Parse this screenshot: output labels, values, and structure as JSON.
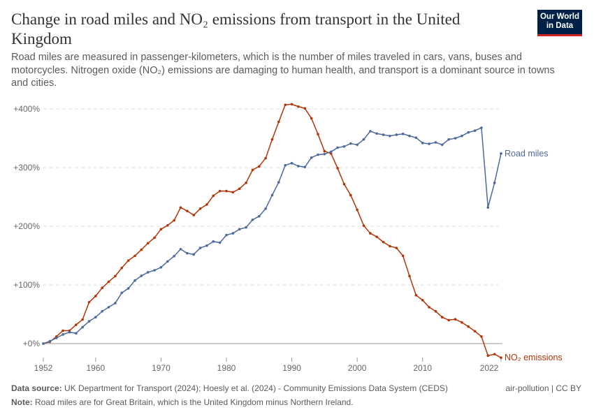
{
  "title": "Change in road miles and NO₂ emissions from transport in the United Kingdom",
  "subtitle": "Road miles are measured in passenger-kilometers, which is the number of miles traveled in cars, vans, buses and motorcycles. Nitrogen oxide (NO₂) emissions are damaging to human health, and transport is a dominant source in towns and cities.",
  "logo": "Our World in Data",
  "footer": {
    "source_label": "Data source:",
    "source": "UK Department for Transport (2024); Hoesly et al. (2024) - Community Emissions Data System (CEDS)",
    "note_label": "Note:",
    "note": "Road miles are for Great Britain, which is the United Kingdom minus Northern Ireland.",
    "license": "air-pollution | CC BY"
  },
  "chart_data": {
    "type": "line",
    "xlim": [
      1952,
      2022
    ],
    "ylim": [
      -25,
      400
    ],
    "grid": "horizontal dashed",
    "yticks": [
      0,
      100,
      200,
      300,
      400
    ],
    "ytick_labels": [
      "+0%",
      "+100%",
      "+200%",
      "+300%",
      "+400%"
    ],
    "xticks": [
      1952,
      1960,
      1970,
      1980,
      1990,
      2000,
      2010,
      2022
    ],
    "xtick_labels": [
      "1952",
      "1960",
      "1970",
      "1980",
      "1990",
      "2000",
      "2010",
      "2022"
    ],
    "legend": "inline-right",
    "series": [
      {
        "name": "Road miles",
        "color": "#4c6a9c",
        "start_year": 1952,
        "values": [
          0,
          4,
          9.5,
          15.5,
          19.4,
          17.5,
          28,
          38,
          45,
          55,
          62,
          69,
          86.5,
          94,
          107.5,
          115.5,
          121.5,
          125,
          130,
          140,
          149,
          161,
          154,
          152,
          163,
          167,
          174,
          172,
          185,
          188,
          195,
          198,
          211,
          217,
          230,
          253,
          275,
          304,
          307.5,
          302.5,
          301,
          317,
          322,
          323,
          327,
          334,
          336,
          341,
          339,
          348,
          362,
          358,
          356,
          354,
          356,
          357.5,
          354,
          351,
          342,
          340.5,
          343,
          339,
          348,
          350,
          354,
          360,
          363,
          368,
          232,
          274,
          324
        ]
      },
      {
        "name": "NO₂ emissions",
        "color": "#b13507",
        "start_year": 1952,
        "values": [
          0,
          3,
          12,
          22,
          22,
          32,
          41,
          70.5,
          81,
          95,
          105.5,
          115,
          129,
          141.5,
          149.5,
          160,
          171,
          180.5,
          195,
          201.5,
          210,
          232,
          226,
          219,
          230,
          237,
          252,
          260,
          260,
          258,
          264,
          274,
          296,
          302,
          316,
          348,
          378,
          407,
          408,
          404,
          401,
          384,
          357,
          328,
          324,
          299,
          272,
          253,
          228,
          201,
          188,
          182,
          173,
          166,
          163,
          149.5,
          115,
          82.5,
          74,
          62,
          55,
          45,
          40,
          41.5,
          36,
          29,
          21,
          12,
          -20.5,
          -18,
          -24
        ]
      }
    ]
  }
}
